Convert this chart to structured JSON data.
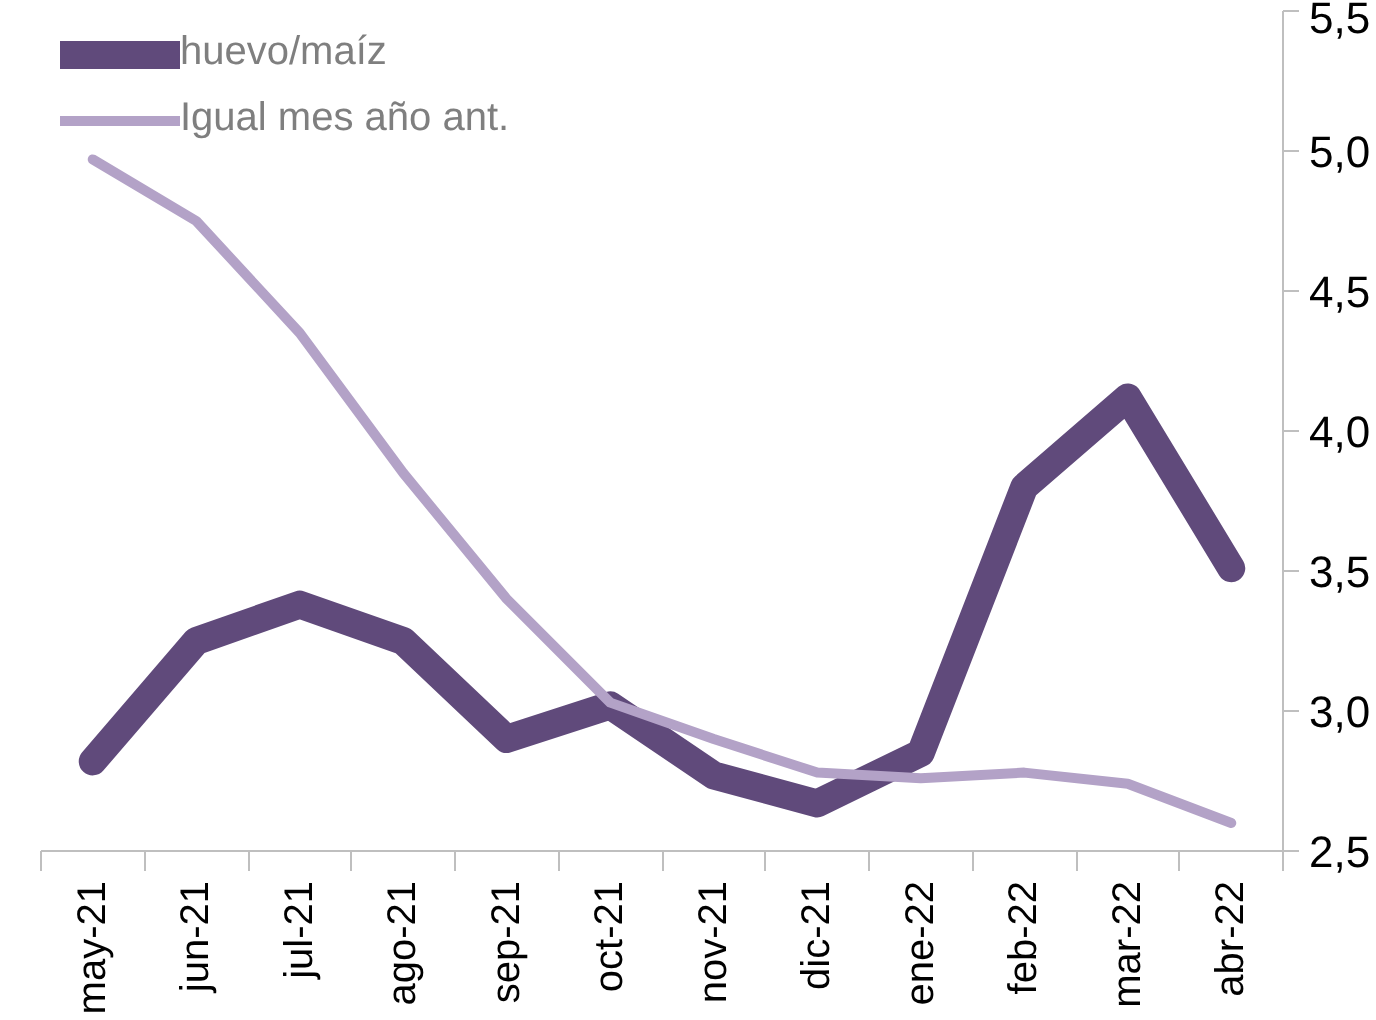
{
  "chart_data": {
    "type": "line",
    "categories": [
      "may-21",
      "jun-21",
      "jul-21",
      "ago-21",
      "sep-21",
      "oct-21",
      "nov-21",
      "dic-21",
      "ene-22",
      "feb-22",
      "mar-22",
      "abr-22"
    ],
    "series": [
      {
        "name": "huevo/maíz",
        "color": "#604a7b",
        "values": [
          2.82,
          3.25,
          3.38,
          3.25,
          2.9,
          3.02,
          2.77,
          2.67,
          2.85,
          3.8,
          4.12,
          3.51
        ]
      },
      {
        "name": "Igual mes año ant.",
        "color": "#b3a2c7",
        "values": [
          4.97,
          4.75,
          4.35,
          3.85,
          3.4,
          3.03,
          2.9,
          2.78,
          2.76,
          2.78,
          2.74,
          2.6
        ]
      }
    ],
    "ylim": [
      2.5,
      5.5
    ],
    "yticks": [
      {
        "value": 2.5,
        "label": "2,5"
      },
      {
        "value": 3.0,
        "label": "3,0"
      },
      {
        "value": 3.5,
        "label": "3,5"
      },
      {
        "value": 4.0,
        "label": "4,0"
      },
      {
        "value": 4.5,
        "label": "4,5"
      },
      {
        "value": 5.0,
        "label": "5,0"
      },
      {
        "value": 5.5,
        "label": "5,5"
      }
    ],
    "grid": false,
    "legend": "top left",
    "marker": "none",
    "line_style": "solid"
  }
}
